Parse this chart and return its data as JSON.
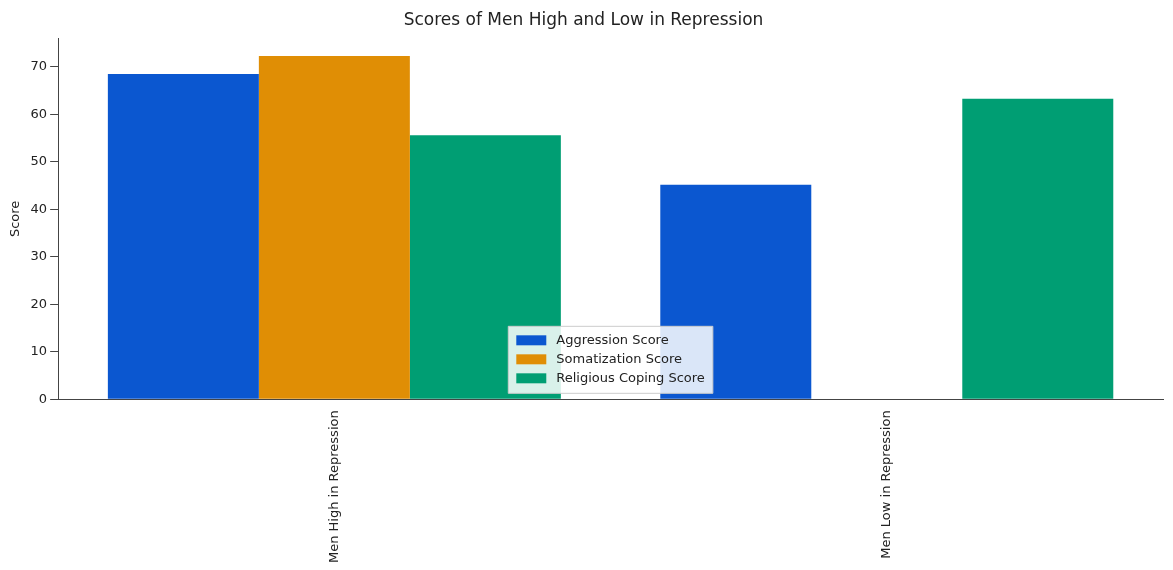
{
  "chart_data": {
    "type": "bar",
    "title": "Scores of Men High and Low in Repression",
    "ylabel": "Score",
    "categories": [
      "Men High in Repression",
      "Men Low in Repression"
    ],
    "series": [
      {
        "name": "Aggression Score",
        "color": "#0b57d0",
        "values": [
          68.5,
          45.2
        ]
      },
      {
        "name": "Somatization Score",
        "color": "#e08e05",
        "values": [
          72.3,
          null
        ]
      },
      {
        "name": "Religious Coping Score",
        "color": "#009e73",
        "values": [
          55.6,
          63.3
        ]
      }
    ],
    "ylim": [
      0,
      76
    ],
    "yticks": [
      0,
      10,
      20,
      30,
      40,
      50,
      60,
      70
    ],
    "grid": false,
    "legend": "bottom"
  }
}
